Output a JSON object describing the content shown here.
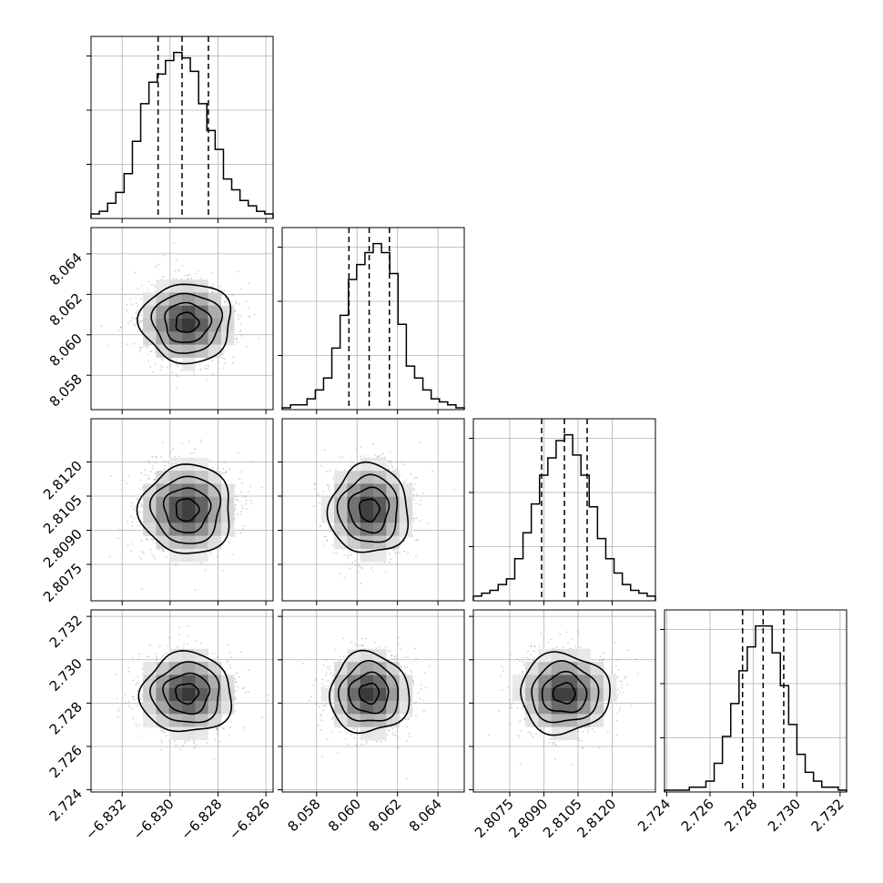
{
  "chart_data": {
    "type": "corner",
    "grid": true,
    "histogram_style": "step",
    "quantile_lines": "dashed",
    "parameters": [
      {
        "range": [
          -6.8333,
          -6.8257
        ],
        "ticks": [
          -6.832,
          -6.83,
          -6.828,
          -6.826
        ],
        "tick_labels": [
          "−6.832",
          "−6.830",
          "−6.828",
          "−6.826"
        ],
        "mean": -6.8293,
        "std": 0.00095,
        "quantiles": [
          -6.8305,
          -6.8295,
          -6.8284
        ]
      },
      {
        "range": [
          8.0563,
          8.0653
        ],
        "ticks": [
          8.058,
          8.06,
          8.062,
          8.064
        ],
        "tick_labels": [
          "8.058",
          "8.060",
          "8.062",
          "8.064"
        ],
        "mean": 8.0606,
        "std": 0.00098,
        "quantiles": [
          8.0596,
          8.0606,
          8.0616
        ]
      },
      {
        "range": [
          2.8059,
          2.8139
        ],
        "ticks": [
          2.8075,
          2.809,
          2.8105,
          2.812
        ],
        "tick_labels": [
          "2.8075",
          "2.8090",
          "2.8105",
          "2.8120"
        ],
        "mean": 2.8099,
        "std": 0.00098,
        "quantiles": [
          2.8089,
          2.8099,
          2.8109
        ]
      },
      {
        "range": [
          2.7239,
          2.7323
        ],
        "ticks": [
          2.724,
          2.726,
          2.728,
          2.73,
          2.732
        ],
        "tick_labels": [
          "2.724",
          "2.726",
          "2.728",
          "2.730",
          "2.732"
        ],
        "mean": 2.72845,
        "std": 0.00092,
        "quantiles": [
          2.7275,
          2.72845,
          2.7294
        ]
      }
    ],
    "histograms": [
      [
        1,
        2,
        5,
        9,
        16,
        28,
        42,
        50,
        53,
        58,
        61,
        59,
        54,
        42,
        32,
        25,
        14,
        10,
        6,
        4,
        2,
        1
      ],
      [
        0,
        1,
        1,
        3,
        6,
        10,
        20,
        31,
        43,
        48,
        52,
        55,
        52,
        45,
        28,
        14,
        10,
        6,
        3,
        2,
        1,
        0
      ],
      [
        1,
        2,
        3,
        5,
        7,
        14,
        23,
        33,
        43,
        49,
        55,
        57,
        50,
        43,
        32,
        21,
        14,
        9,
        5,
        3,
        2,
        1
      ],
      [
        0,
        0,
        0,
        1,
        1,
        3,
        9,
        18,
        29,
        40,
        48,
        55,
        55,
        46,
        35,
        22,
        12,
        6,
        3,
        1,
        1,
        0
      ]
    ],
    "histogram_value_axis": {
      "tick_positions_fraction_of_peak": [
        0.33,
        0.66,
        0.99
      ]
    },
    "colors": {
      "line": "#000000",
      "grid": "#b0b0b0",
      "scatter": "#9a9a9a",
      "density_dark": "#000000",
      "density_light": "#ffffff"
    }
  }
}
